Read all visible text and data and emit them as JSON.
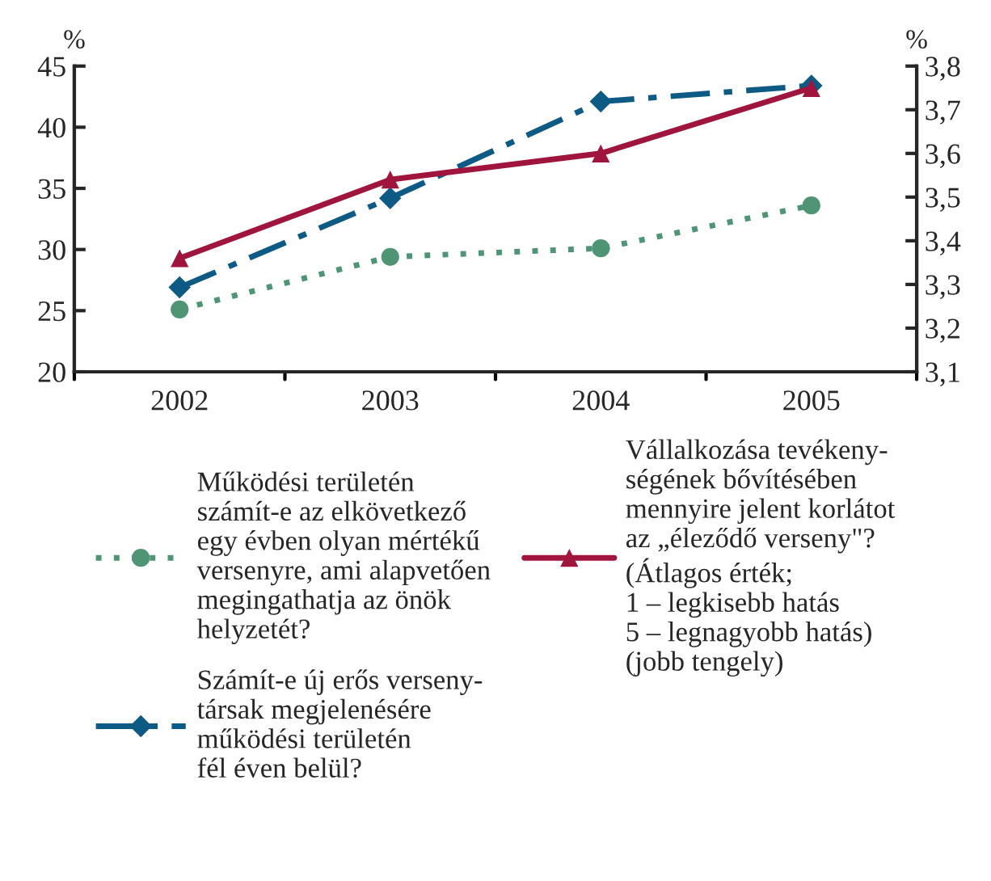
{
  "chart_data": {
    "type": "line",
    "categories": [
      "2002",
      "2003",
      "2004",
      "2005"
    ],
    "ylabel": "%",
    "y2label": "%",
    "ylim": [
      20,
      45
    ],
    "yticks": [
      20,
      25,
      30,
      35,
      40,
      45
    ],
    "y2lim": [
      3.1,
      3.8
    ],
    "y2ticks": [
      {
        "value": 3.1,
        "label": "3,1"
      },
      {
        "value": 3.2,
        "label": "3,2"
      },
      {
        "value": 3.3,
        "label": "3,3"
      },
      {
        "value": 3.4,
        "label": "3,4"
      },
      {
        "value": 3.5,
        "label": "3,5"
      },
      {
        "value": 3.6,
        "label": "3,6"
      },
      {
        "value": 3.7,
        "label": "3,7"
      },
      {
        "value": 3.8,
        "label": "3,8"
      }
    ],
    "grid": false,
    "legend": "bottom",
    "series": [
      {
        "name": "Működési területén\nszámít-e az elkövetkező\negy évben olyan mértékű\nversenyre, ami alapvetően\nmegingathatja az önök\nhelyzetét?",
        "color": "#4e9475",
        "values": [
          25.1,
          29.4,
          30.1,
          33.6
        ],
        "marker": "circle",
        "line_style": "dotted"
      },
      {
        "name": "Számít-e új erős verseny-\ntársak megjelenésére\nműködési területén\nfél éven belül?",
        "color": "#0d5a85",
        "values": [
          26.9,
          34.2,
          42.1,
          43.4
        ],
        "marker": "diamond",
        "line_style": "dashdot"
      },
      {
        "name": "Vállalkozása tevékeny-\nségének bővítésében\nmennyire jelent korlátot\naz „éleződő verseny\"?\n(Átlagos érték;\n1 – legkisebb hatás\n5 – legnagyobb hatás)\n(jobb tengely)",
        "color": "#a0153e",
        "values": [
          3.36,
          3.54,
          3.6,
          3.75
        ],
        "marker": "triangle",
        "line_style": "solid",
        "axis": "y2"
      }
    ]
  }
}
